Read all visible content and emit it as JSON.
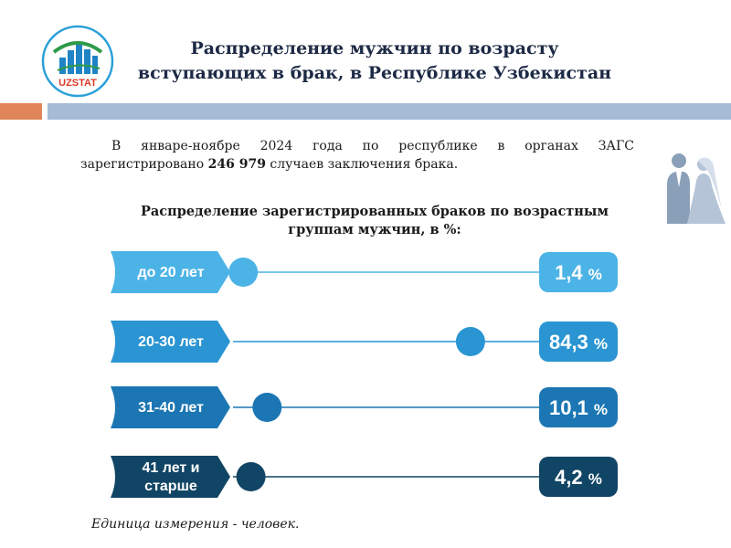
{
  "logo": {
    "text": "UZSTAT"
  },
  "title_line1": "Распределение мужчин по возрасту",
  "title_line2": "вступающих в брак, в Республике Узбекистан",
  "intro": {
    "part1": "В январе-ноябре 2024 года по республике в органах ЗАГС зарегистрировано",
    "number": "246 979",
    "part2": "случаев заключения брака."
  },
  "subtitle_line1": "Распределение зарегистрированных браков по возрастным",
  "subtitle_line2": "группам мужчин, в %:",
  "unit_note": "Единица измерения - человек.",
  "chart_data": {
    "type": "bar",
    "categories": [
      "до 20 лет",
      "20-30 лет",
      "31-40 лет",
      "41 лет и старше"
    ],
    "category_lines": [
      [
        "до 20 лет"
      ],
      [
        "20-30 лет"
      ],
      [
        "31-40 лет"
      ],
      [
        "41 лет и",
        "старше"
      ]
    ],
    "values": [
      1.4,
      84.3,
      10.1,
      4.2
    ],
    "value_labels": [
      "1,4",
      "84,3",
      "10,1",
      "4,2"
    ],
    "unit": "%",
    "colors": [
      "#4cb3e6",
      "#2a95d2",
      "#1b76b3",
      "#114565"
    ]
  }
}
